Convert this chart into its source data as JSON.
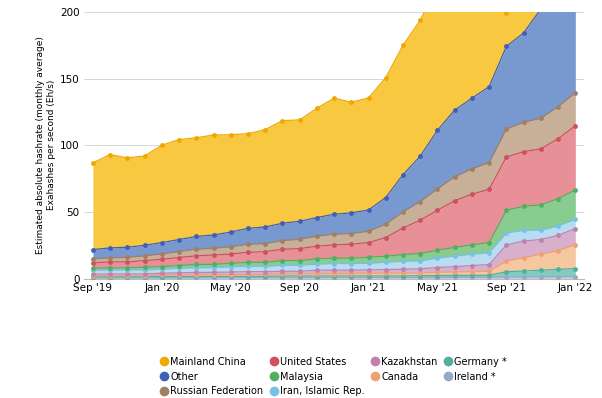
{
  "ylabel": "Estimated absolute hashrate (monthly average)\nExahashes per second (Eh/s)",
  "ylim": [
    0,
    200
  ],
  "yticks": [
    0,
    50,
    100,
    150,
    200
  ],
  "background_color": "#ffffff",
  "grid_color": "#d0d0d0",
  "x_labels": [
    "Sep '19",
    "Jan '20",
    "May '20",
    "Sep '20",
    "Jan '21",
    "May '21",
    "Sep '21",
    "Jan '22"
  ],
  "x_tick_positions": [
    0,
    4,
    8,
    12,
    16,
    20,
    24,
    28
  ],
  "stack_order": [
    "Ireland *",
    "Germany *",
    "Canada",
    "Kazakhstan",
    "Iran, Islamic Rep.",
    "Malaysia",
    "United States",
    "Russian Federation",
    "Other",
    "Mainland China"
  ],
  "series": {
    "Ireland *": {
      "color": "#c8cfe0",
      "marker_color": "#9aa8c8"
    },
    "Germany *": {
      "color": "#80cdc0",
      "marker_color": "#50b0a0"
    },
    "Canada": {
      "color": "#f5c8a0",
      "marker_color": "#f0a070"
    },
    "Kazakhstan": {
      "color": "#d8b0cc",
      "marker_color": "#c080b0"
    },
    "Iran, Islamic Rep.": {
      "color": "#b8ddf0",
      "marker_color": "#78c0e8"
    },
    "Malaysia": {
      "color": "#88cc90",
      "marker_color": "#50b060"
    },
    "United States": {
      "color": "#e89098",
      "marker_color": "#d05060"
    },
    "Russian Federation": {
      "color": "#c8b098",
      "marker_color": "#a08060"
    },
    "Other": {
      "color": "#7898d0",
      "marker_color": "#4060b8"
    },
    "Mainland China": {
      "color": "#f8c840",
      "marker_color": "#f0a800"
    }
  },
  "data": {
    "Ireland *": [
      0.5,
      0.5,
      0.5,
      0.5,
      0.5,
      0.6,
      0.6,
      0.7,
      0.7,
      0.7,
      0.7,
      0.8,
      0.8,
      0.8,
      0.8,
      0.8,
      0.8,
      0.8,
      0.8,
      0.8,
      0.8,
      0.9,
      1.0,
      1.0,
      1.2,
      1.2,
      1.3,
      1.4,
      1.5
    ],
    "Germany *": [
      0.8,
      0.8,
      0.8,
      0.8,
      1.0,
      1.0,
      1.0,
      1.0,
      1.0,
      1.0,
      1.0,
      1.2,
      1.2,
      1.2,
      1.2,
      1.2,
      1.2,
      1.2,
      1.2,
      1.5,
      1.5,
      1.5,
      1.5,
      1.5,
      4.0,
      4.5,
      5.0,
      5.5,
      6.0
    ],
    "Canada": [
      1.0,
      1.0,
      1.0,
      1.0,
      1.0,
      1.2,
      1.2,
      1.2,
      1.2,
      1.5,
      1.5,
      1.5,
      1.5,
      1.8,
      1.8,
      1.8,
      2.0,
      2.0,
      2.0,
      2.0,
      2.5,
      2.5,
      2.8,
      3.0,
      8.0,
      10.0,
      12.0,
      14.0,
      18.0
    ],
    "Kazakhstan": [
      1.0,
      1.2,
      1.2,
      1.2,
      1.5,
      1.5,
      1.8,
      1.8,
      2.0,
      2.0,
      2.0,
      2.0,
      2.0,
      2.5,
      2.5,
      2.5,
      2.5,
      2.8,
      3.0,
      3.0,
      3.5,
      4.0,
      4.5,
      5.0,
      12.0,
      12.5,
      11.0,
      11.5,
      12.0
    ],
    "Iran, Islamic Rep.": [
      3.0,
      3.0,
      3.0,
      3.0,
      3.0,
      3.5,
      3.5,
      3.5,
      4.0,
      4.0,
      4.0,
      4.5,
      4.5,
      4.5,
      5.0,
      5.0,
      5.0,
      5.5,
      6.0,
      6.0,
      7.0,
      8.0,
      8.5,
      9.0,
      9.0,
      8.0,
      7.0,
      7.0,
      7.0
    ],
    "Malaysia": [
      1.5,
      1.5,
      1.5,
      2.0,
      2.0,
      2.0,
      2.5,
      2.5,
      2.5,
      3.0,
      3.0,
      3.5,
      3.5,
      4.0,
      4.0,
      4.0,
      4.5,
      4.5,
      5.0,
      5.5,
      6.0,
      6.5,
      7.0,
      7.5,
      17.0,
      18.0,
      19.0,
      20.5,
      22.0
    ],
    "United States": [
      4.0,
      4.5,
      4.5,
      5.0,
      5.5,
      6.0,
      6.5,
      7.0,
      7.0,
      7.5,
      8.0,
      8.5,
      9.0,
      9.5,
      10.0,
      10.5,
      11.0,
      14.0,
      20.0,
      25.0,
      30.0,
      35.0,
      38.0,
      40.0,
      40.0,
      41.0,
      42.0,
      45.0,
      48.0
    ],
    "Russian Federation": [
      3.0,
      3.0,
      3.5,
      3.5,
      4.0,
      4.5,
      5.0,
      5.0,
      5.5,
      6.0,
      6.0,
      6.5,
      7.0,
      7.5,
      8.0,
      8.0,
      8.5,
      10.0,
      12.0,
      14.0,
      16.0,
      18.0,
      19.0,
      20.0,
      21.0,
      22.0,
      23.0,
      24.0,
      25.0
    ],
    "Other": [
      7.0,
      7.5,
      7.5,
      8.0,
      8.5,
      9.0,
      9.5,
      10.0,
      11.0,
      12.0,
      12.5,
      13.0,
      13.5,
      14.0,
      15.0,
      15.5,
      16.0,
      20.0,
      28.0,
      34.0,
      44.0,
      50.0,
      53.0,
      57.0,
      62.0,
      67.0,
      82.0,
      106.0,
      127.0
    ],
    "Mainland China": [
      65.0,
      70.0,
      67.0,
      67.0,
      73.0,
      75.0,
      74.0,
      75.0,
      73.0,
      71.0,
      73.0,
      77.0,
      76.0,
      82.0,
      87.0,
      83.0,
      84.0,
      90.0,
      97.0,
      102.0,
      108.0,
      110.0,
      108.0,
      88.0,
      25.0,
      42.0,
      58.0,
      82.0,
      0.0
    ]
  },
  "n_points": 29,
  "legend": [
    {
      "label": "Mainland China",
      "marker": "#f0a800"
    },
    {
      "label": "Other",
      "marker": "#4060b8"
    },
    {
      "label": "Russian Federation",
      "marker": "#a08060"
    },
    {
      "label": "United States",
      "marker": "#d05060"
    },
    {
      "label": "Malaysia",
      "marker": "#50b060"
    },
    {
      "label": "Iran, Islamic Rep.",
      "marker": "#78c0e8"
    },
    {
      "label": "Kazakhstan",
      "marker": "#c080b0"
    },
    {
      "label": "Canada",
      "marker": "#f0a070"
    },
    {
      "label": "Germany *",
      "marker": "#50b0a0"
    },
    {
      "label": "Ireland *",
      "marker": "#9aa8c8"
    }
  ]
}
